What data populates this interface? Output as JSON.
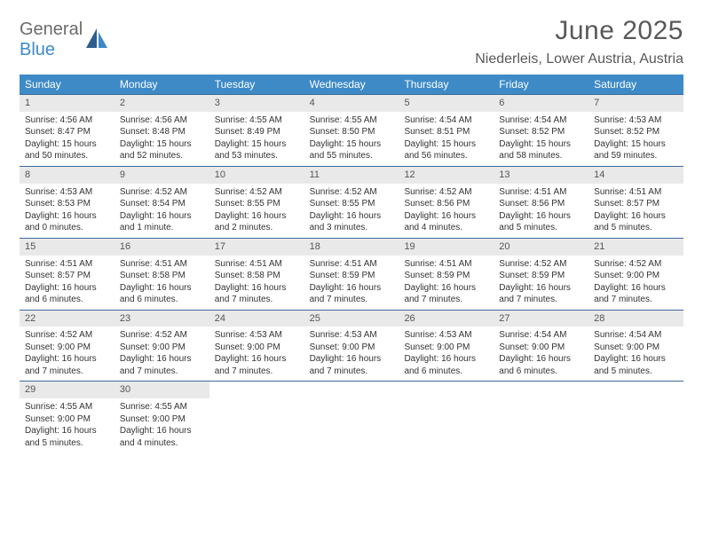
{
  "logo": {
    "part1": "General",
    "part2": "Blue"
  },
  "title": "June 2025",
  "location": "Niederleis, Lower Austria, Austria",
  "colors": {
    "header_bg": "#3d8ac7",
    "header_text": "#ffffff",
    "daynum_bg": "#e9e9e9",
    "week_border": "#3d6a9a",
    "body_text": "#333333",
    "title_text": "#595959",
    "logo_gray": "#6b6b6b",
    "logo_blue": "#3d8ac7",
    "background": "#ffffff"
  },
  "typography": {
    "title_fontsize": 30,
    "location_fontsize": 16,
    "dayheader_fontsize": 12,
    "daynum_fontsize": 11,
    "body_fontsize": 10,
    "logo_fontsize": 20
  },
  "day_names": [
    "Sunday",
    "Monday",
    "Tuesday",
    "Wednesday",
    "Thursday",
    "Friday",
    "Saturday"
  ],
  "weeks": [
    [
      {
        "n": "1",
        "sr": "Sunrise: 4:56 AM",
        "ss": "Sunset: 8:47 PM",
        "dl": "Daylight: 15 hours and 50 minutes."
      },
      {
        "n": "2",
        "sr": "Sunrise: 4:56 AM",
        "ss": "Sunset: 8:48 PM",
        "dl": "Daylight: 15 hours and 52 minutes."
      },
      {
        "n": "3",
        "sr": "Sunrise: 4:55 AM",
        "ss": "Sunset: 8:49 PM",
        "dl": "Daylight: 15 hours and 53 minutes."
      },
      {
        "n": "4",
        "sr": "Sunrise: 4:55 AM",
        "ss": "Sunset: 8:50 PM",
        "dl": "Daylight: 15 hours and 55 minutes."
      },
      {
        "n": "5",
        "sr": "Sunrise: 4:54 AM",
        "ss": "Sunset: 8:51 PM",
        "dl": "Daylight: 15 hours and 56 minutes."
      },
      {
        "n": "6",
        "sr": "Sunrise: 4:54 AM",
        "ss": "Sunset: 8:52 PM",
        "dl": "Daylight: 15 hours and 58 minutes."
      },
      {
        "n": "7",
        "sr": "Sunrise: 4:53 AM",
        "ss": "Sunset: 8:52 PM",
        "dl": "Daylight: 15 hours and 59 minutes."
      }
    ],
    [
      {
        "n": "8",
        "sr": "Sunrise: 4:53 AM",
        "ss": "Sunset: 8:53 PM",
        "dl": "Daylight: 16 hours and 0 minutes."
      },
      {
        "n": "9",
        "sr": "Sunrise: 4:52 AM",
        "ss": "Sunset: 8:54 PM",
        "dl": "Daylight: 16 hours and 1 minute."
      },
      {
        "n": "10",
        "sr": "Sunrise: 4:52 AM",
        "ss": "Sunset: 8:55 PM",
        "dl": "Daylight: 16 hours and 2 minutes."
      },
      {
        "n": "11",
        "sr": "Sunrise: 4:52 AM",
        "ss": "Sunset: 8:55 PM",
        "dl": "Daylight: 16 hours and 3 minutes."
      },
      {
        "n": "12",
        "sr": "Sunrise: 4:52 AM",
        "ss": "Sunset: 8:56 PM",
        "dl": "Daylight: 16 hours and 4 minutes."
      },
      {
        "n": "13",
        "sr": "Sunrise: 4:51 AM",
        "ss": "Sunset: 8:56 PM",
        "dl": "Daylight: 16 hours and 5 minutes."
      },
      {
        "n": "14",
        "sr": "Sunrise: 4:51 AM",
        "ss": "Sunset: 8:57 PM",
        "dl": "Daylight: 16 hours and 5 minutes."
      }
    ],
    [
      {
        "n": "15",
        "sr": "Sunrise: 4:51 AM",
        "ss": "Sunset: 8:57 PM",
        "dl": "Daylight: 16 hours and 6 minutes."
      },
      {
        "n": "16",
        "sr": "Sunrise: 4:51 AM",
        "ss": "Sunset: 8:58 PM",
        "dl": "Daylight: 16 hours and 6 minutes."
      },
      {
        "n": "17",
        "sr": "Sunrise: 4:51 AM",
        "ss": "Sunset: 8:58 PM",
        "dl": "Daylight: 16 hours and 7 minutes."
      },
      {
        "n": "18",
        "sr": "Sunrise: 4:51 AM",
        "ss": "Sunset: 8:59 PM",
        "dl": "Daylight: 16 hours and 7 minutes."
      },
      {
        "n": "19",
        "sr": "Sunrise: 4:51 AM",
        "ss": "Sunset: 8:59 PM",
        "dl": "Daylight: 16 hours and 7 minutes."
      },
      {
        "n": "20",
        "sr": "Sunrise: 4:52 AM",
        "ss": "Sunset: 8:59 PM",
        "dl": "Daylight: 16 hours and 7 minutes."
      },
      {
        "n": "21",
        "sr": "Sunrise: 4:52 AM",
        "ss": "Sunset: 9:00 PM",
        "dl": "Daylight: 16 hours and 7 minutes."
      }
    ],
    [
      {
        "n": "22",
        "sr": "Sunrise: 4:52 AM",
        "ss": "Sunset: 9:00 PM",
        "dl": "Daylight: 16 hours and 7 minutes."
      },
      {
        "n": "23",
        "sr": "Sunrise: 4:52 AM",
        "ss": "Sunset: 9:00 PM",
        "dl": "Daylight: 16 hours and 7 minutes."
      },
      {
        "n": "24",
        "sr": "Sunrise: 4:53 AM",
        "ss": "Sunset: 9:00 PM",
        "dl": "Daylight: 16 hours and 7 minutes."
      },
      {
        "n": "25",
        "sr": "Sunrise: 4:53 AM",
        "ss": "Sunset: 9:00 PM",
        "dl": "Daylight: 16 hours and 7 minutes."
      },
      {
        "n": "26",
        "sr": "Sunrise: 4:53 AM",
        "ss": "Sunset: 9:00 PM",
        "dl": "Daylight: 16 hours and 6 minutes."
      },
      {
        "n": "27",
        "sr": "Sunrise: 4:54 AM",
        "ss": "Sunset: 9:00 PM",
        "dl": "Daylight: 16 hours and 6 minutes."
      },
      {
        "n": "28",
        "sr": "Sunrise: 4:54 AM",
        "ss": "Sunset: 9:00 PM",
        "dl": "Daylight: 16 hours and 5 minutes."
      }
    ],
    [
      {
        "n": "29",
        "sr": "Sunrise: 4:55 AM",
        "ss": "Sunset: 9:00 PM",
        "dl": "Daylight: 16 hours and 5 minutes."
      },
      {
        "n": "30",
        "sr": "Sunrise: 4:55 AM",
        "ss": "Sunset: 9:00 PM",
        "dl": "Daylight: 16 hours and 4 minutes."
      },
      null,
      null,
      null,
      null,
      null
    ]
  ]
}
